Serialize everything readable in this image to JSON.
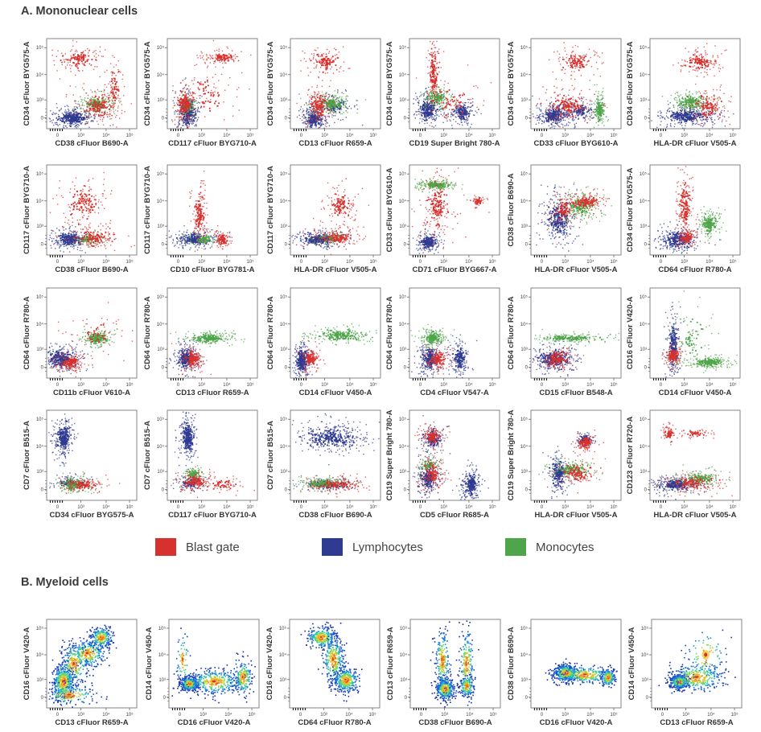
{
  "section_a_title": "A. Mononuclear cells",
  "section_b_title": "B. Myeloid cells",
  "legend": [
    {
      "label": "Blast gate",
      "color": "#d7312e"
    },
    {
      "label": "Lymphocytes",
      "color": "#2f3a91"
    },
    {
      "label": "Monocytes",
      "color": "#4fa64a"
    }
  ],
  "chart_data": [
    {
      "type": "scatter",
      "title": "A. Mononuclear cells",
      "axis_scale": "biexponential",
      "y_tick_labels": [
        "10⁵",
        "10⁴",
        "10³",
        "0"
      ],
      "x_tick_labels": [
        "0",
        "10³",
        "10⁴",
        "10⁵"
      ],
      "series": [
        "Blast gate",
        "Lymphocytes",
        "Monocytes"
      ],
      "panels": [
        {
          "xlabel": "CD38 cFluor B690-A",
          "ylabel": "CD34 cFluor BYG575-A"
        },
        {
          "xlabel": "CD117 cFluor BYG710-A",
          "ylabel": "CD34 cFluor BYG575-A"
        },
        {
          "xlabel": "CD13 cFluor R659-A",
          "ylabel": "CD34 cFluor BYG575-A"
        },
        {
          "xlabel": "CD19 Super Bright 780-A",
          "ylabel": "CD34 cFluor BYG575-A"
        },
        {
          "xlabel": "CD33 cFluor BYG610-A",
          "ylabel": "CD34 cFluor BYG575-A"
        },
        {
          "xlabel": "HLA-DR cFluor V505-A",
          "ylabel": "CD34 cFluor BYG575-A"
        },
        {
          "xlabel": "CD38 cFluor B690-A",
          "ylabel": "CD117 cFluor BYG710-A"
        },
        {
          "xlabel": "CD10 cFluor BYG781-A",
          "ylabel": "CD117 cFluor BYG710-A"
        },
        {
          "xlabel": "HLA-DR cFluor V505-A",
          "ylabel": "CD117 cFluor BYG710-A"
        },
        {
          "xlabel": "CD71 cFluor BYG667-A",
          "ylabel": "CD33 cFluor BYG610-A"
        },
        {
          "xlabel": "HLA-DR cFluor V505-A",
          "ylabel": "CD38 cFluor B690-A"
        },
        {
          "xlabel": "CD64 cFluor R780-A",
          "ylabel": "CD34 cFluor BYG575-A"
        },
        {
          "xlabel": "CD11b cFluor V610-A",
          "ylabel": "CD64 cFluor R780-A"
        },
        {
          "xlabel": "CD13 cFluor R659-A",
          "ylabel": "CD64 cFluor R780-A"
        },
        {
          "xlabel": "CD14 cFluor V450-A",
          "ylabel": "CD64 cFluor R780-A"
        },
        {
          "xlabel": "CD4 cFluor V547-A",
          "ylabel": "CD64 cFluor R780-A"
        },
        {
          "xlabel": "CD15 cFluor B548-A",
          "ylabel": "CD64 cFluor R780-A"
        },
        {
          "xlabel": "CD14 cFluor V450-A",
          "ylabel": "CD16 cFluor V420-A"
        },
        {
          "xlabel": "CD34 cFluor BYG575-A",
          "ylabel": "CD7 cFluor B515-A"
        },
        {
          "xlabel": "CD117 cFluor BYG710-A",
          "ylabel": "CD7 cFluor B515-A"
        },
        {
          "xlabel": "CD38 cFluor B690-A",
          "ylabel": "CD7 cFluor B515-A"
        },
        {
          "xlabel": "CD5 cFluor R685-A",
          "ylabel": "CD19 Super Bright 780-A"
        },
        {
          "xlabel": "HLA-DR cFluor V505-A",
          "ylabel": "CD19 Super Bright 780-A"
        },
        {
          "xlabel": "HLA-DR cFluor V505-A",
          "ylabel": "CD123 cFluor R720-A"
        }
      ]
    },
    {
      "type": "scatter",
      "title": "B. Myeloid cells",
      "style": "density",
      "axis_scale": "biexponential",
      "y_tick_labels": [
        "10⁵",
        "10⁴",
        "10³",
        "0"
      ],
      "x_tick_labels": [
        "0",
        "10³",
        "10⁴",
        "10⁵"
      ],
      "panels": [
        {
          "xlabel": "CD13 cFluor R659-A",
          "ylabel": "CD16 cFluor V420-A"
        },
        {
          "xlabel": "CD16 cFluor V420-A",
          "ylabel": "CD14 cFluor V450-A"
        },
        {
          "xlabel": "CD64 cFluor R780-A",
          "ylabel": "CD16 cFluor V420-A"
        },
        {
          "xlabel": "CD38 cFluor B690-A",
          "ylabel": "CD13 cFluor R659-A"
        },
        {
          "xlabel": "CD16 cFluor V420-A",
          "ylabel": "CD38 cFluor B690-A"
        },
        {
          "xlabel": "CD13 cFluor R659-A",
          "ylabel": "CD14 cFluor V450-A"
        }
      ]
    }
  ]
}
